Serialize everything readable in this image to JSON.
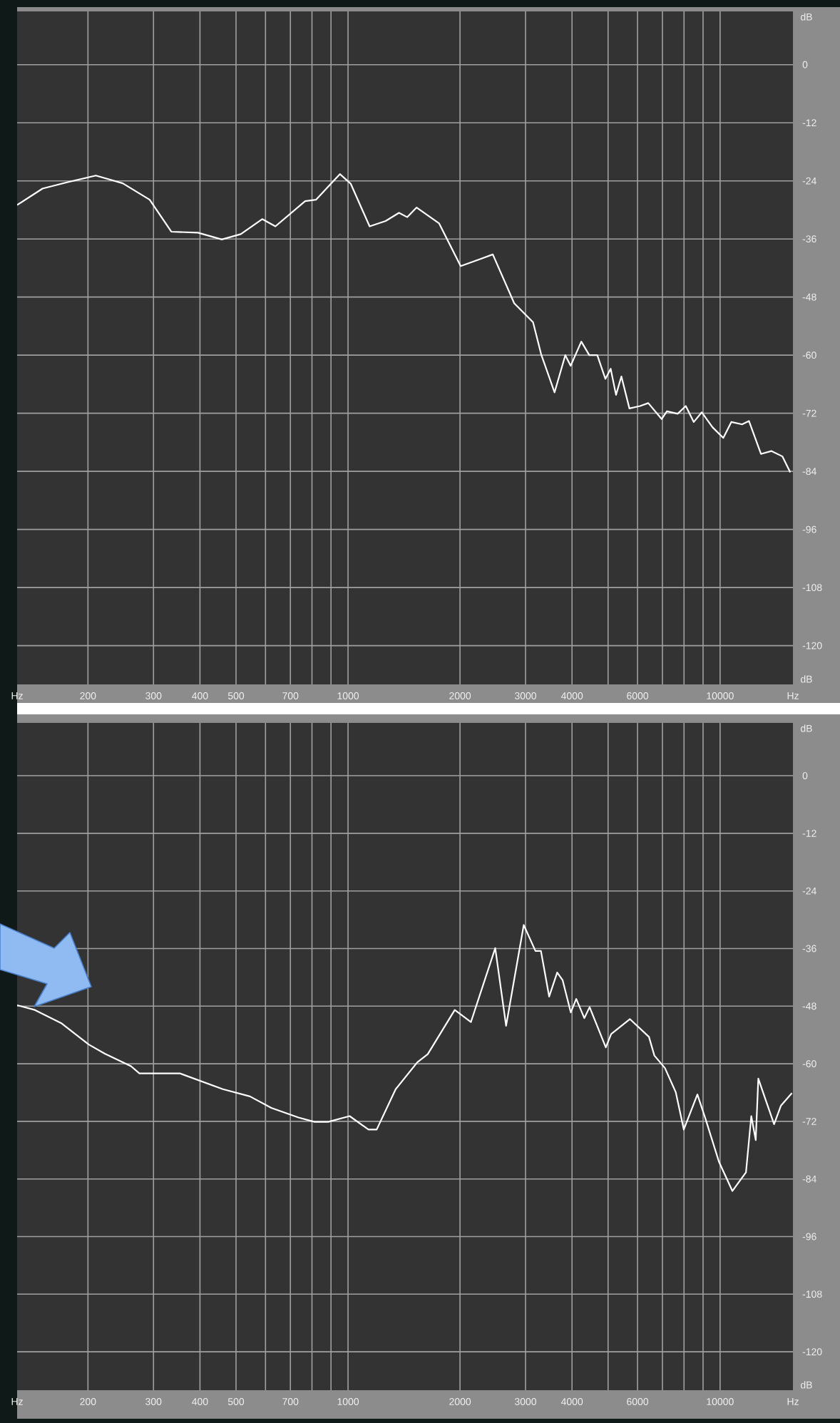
{
  "chart_data": [
    {
      "type": "line",
      "log": "x",
      "grid": true,
      "xlim": [
        129,
        15700
      ],
      "ylim": [
        -128,
        11
      ],
      "xticks": [
        {
          "value": 129,
          "label": "Hz"
        },
        200,
        300,
        400,
        500,
        {
          "value": 600,
          "label": null
        },
        700,
        {
          "value": 800,
          "label": null
        },
        {
          "value": 900,
          "label": null
        },
        1000,
        2000,
        3000,
        4000,
        {
          "value": 5000,
          "label": null
        },
        6000,
        {
          "value": 7000,
          "label": null
        },
        {
          "value": 8000,
          "label": null
        },
        {
          "value": 9000,
          "label": null
        },
        10000,
        {
          "value": 15700,
          "label": "Hz"
        }
      ],
      "yticks": [
        0,
        -12,
        -24,
        -36,
        -48,
        -60,
        -72,
        -84,
        -96,
        -108,
        -120
      ],
      "annotations": [
        "dB",
        "dB"
      ],
      "series": [
        {
          "color": "#ffffff",
          "x": [
            129,
            151,
            178,
            210,
            248,
            293,
            335,
            395,
            458,
            515,
            588,
            638,
            767,
            820,
            951,
            1017,
            1143,
            1262,
            1371,
            1443,
            1529,
            1758,
            2008,
            2256,
            2450,
            2798,
            3143,
            3304,
            3590,
            3838,
            3966,
            4237,
            4451,
            4677,
            4917,
            5081,
            5252,
            5430,
            5706,
            6098,
            6412,
            6966,
            7198,
            7692,
            8088,
            8498,
            8931,
            9546,
            10200,
            10720,
            11460,
            11960,
            12880,
            13750,
            14700,
            15440
          ],
          "values": [
            -29.0,
            -25.6,
            -24.2,
            -22.9,
            -24.5,
            -27.9,
            -34.5,
            -34.7,
            -36.1,
            -35.0,
            -31.9,
            -33.4,
            -28.2,
            -27.9,
            -22.6,
            -24.6,
            -33.4,
            -32.3,
            -30.6,
            -31.5,
            -29.5,
            -32.8,
            -41.6,
            -40.2,
            -39.2,
            -49.3,
            -53.2,
            -59.8,
            -67.7,
            -60.0,
            -62.2,
            -57.2,
            -60.0,
            -60.0,
            -64.9,
            -62.8,
            -68.2,
            -64.4,
            -71.0,
            -70.5,
            -69.9,
            -73.2,
            -71.6,
            -72.1,
            -70.5,
            -73.8,
            -71.8,
            -74.9,
            -77.1,
            -73.8,
            -74.3,
            -73.6,
            -80.4,
            -79.8,
            -80.9,
            -84.2
          ]
        }
      ]
    },
    {
      "type": "line",
      "log": "x",
      "grid": true,
      "xlim": [
        129,
        15700
      ],
      "ylim": [
        -128,
        11
      ],
      "xticks": [
        {
          "value": 129,
          "label": "Hz"
        },
        200,
        300,
        400,
        500,
        {
          "value": 600,
          "label": null
        },
        700,
        {
          "value": 800,
          "label": null
        },
        {
          "value": 900,
          "label": null
        },
        1000,
        2000,
        3000,
        4000,
        {
          "value": 5000,
          "label": null
        },
        6000,
        {
          "value": 7000,
          "label": null
        },
        {
          "value": 8000,
          "label": null
        },
        {
          "value": 9000,
          "label": null
        },
        10000,
        {
          "value": 15700,
          "label": "Hz"
        }
      ],
      "yticks": [
        0,
        -12,
        -24,
        -36,
        -48,
        -60,
        -72,
        -84,
        -96,
        -108,
        -120
      ],
      "annotations": [
        "dB",
        "dB"
      ],
      "series": [
        {
          "color": "#ffffff",
          "x": [
            129,
            144,
            170,
            201,
            222,
            261,
            275,
            353,
            461,
            545,
            622,
            736,
            813,
            884,
            1010,
            1135,
            1194,
            1343,
            1535,
            1638,
            1936,
            2140,
            2487,
            2660,
            2967,
            3190,
            3300,
            3472,
            3650,
            3775,
            3970,
            4106,
            4317,
            4460,
            4930,
            5097,
            5726,
            6440,
            6660,
            7110,
            7600,
            7990,
            8690,
            9140,
            9930,
            10790,
            11740,
            12130,
            12470,
            12670,
            13420,
            13970,
            14580,
            15600
          ],
          "values": [
            -47.8,
            -48.8,
            -51.6,
            -56.0,
            -57.9,
            -60.5,
            -62.0,
            -62.0,
            -65.3,
            -66.8,
            -69.2,
            -71.2,
            -72.1,
            -72.1,
            -70.9,
            -73.7,
            -73.7,
            -65.3,
            -59.7,
            -58.0,
            -48.8,
            -51.3,
            -35.9,
            -52.1,
            -31.1,
            -36.5,
            -36.5,
            -46.0,
            -41.0,
            -42.6,
            -49.3,
            -46.5,
            -50.5,
            -48.2,
            -56.6,
            -53.8,
            -50.7,
            -54.4,
            -58.3,
            -60.9,
            -65.9,
            -73.7,
            -66.4,
            -71.5,
            -80.4,
            -86.5,
            -82.6,
            -70.9,
            -75.9,
            -63.1,
            -68.7,
            -72.6,
            -68.7,
            -66.1
          ]
        }
      ]
    }
  ]
}
